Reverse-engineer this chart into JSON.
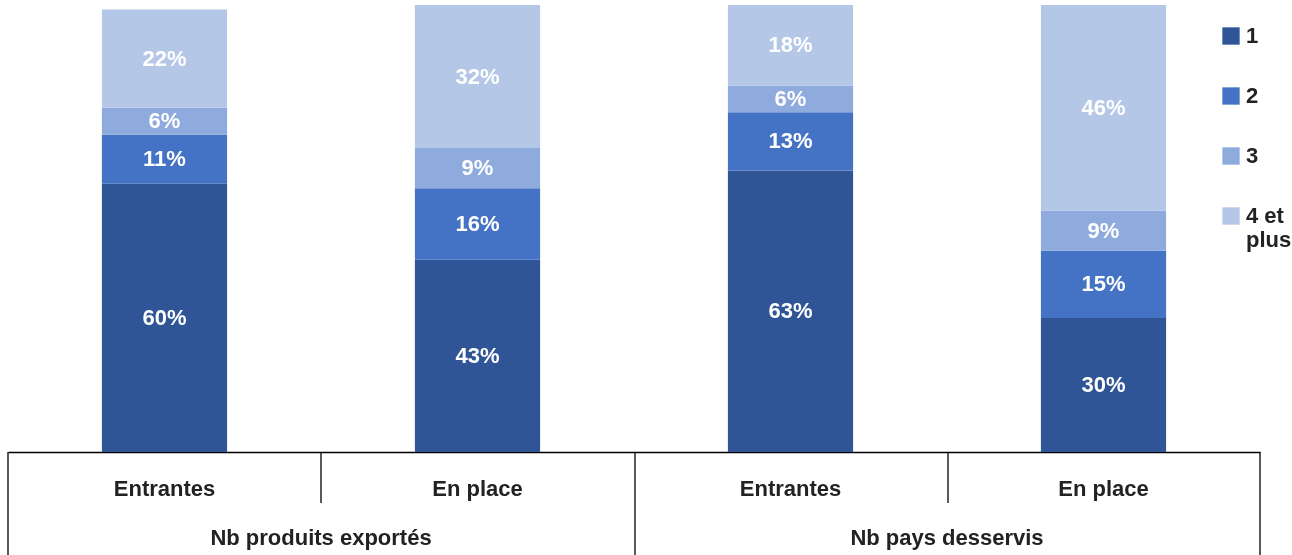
{
  "chart_data": {
    "type": "bar",
    "stacked": true,
    "categories": [
      "Entrantes",
      "En place",
      "Entrantes",
      "En place"
    ],
    "annotations": [
      "Nb produits exportés",
      "Nb pays desservis"
    ],
    "ylim": [
      0,
      100
    ],
    "tick_labels": "x",
    "legend": "right",
    "grid": false,
    "series": [
      {
        "name": "1",
        "color": "#2f5597",
        "values": [
          60,
          43,
          63,
          30
        ],
        "value_labels": [
          "60%",
          "43%",
          "63%",
          "30%"
        ]
      },
      {
        "name": "2",
        "color": "#4472c4",
        "values": [
          11,
          16,
          13,
          15
        ],
        "value_labels": [
          "11%",
          "16%",
          "13%",
          "15%"
        ]
      },
      {
        "name": "3",
        "color": "#8faadc",
        "values": [
          6,
          9,
          6,
          9
        ],
        "value_labels": [
          "6%",
          "9%",
          "6%",
          "9%"
        ]
      },
      {
        "name": "4 et plus",
        "color": "#b4c7e7",
        "values": [
          22,
          32,
          18,
          46
        ],
        "value_labels": [
          "22%",
          "32%",
          "18%",
          "46%"
        ]
      }
    ]
  }
}
